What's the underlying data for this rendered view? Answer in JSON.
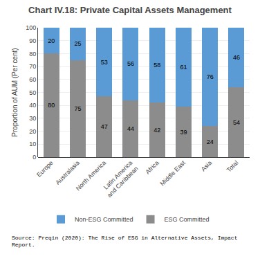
{
  "chart_data": {
    "type": "bar",
    "title": "Chart IV.18: Private Capital Assets Management",
    "categories": [
      "Europe",
      "Australasia",
      "North America",
      "Latin America\nand Caribbean",
      "Africa",
      "Middle East",
      "Asia",
      "Total"
    ],
    "series": [
      {
        "name": "ESG Committed",
        "color": "#8c8c8c",
        "values": [
          80,
          75,
          47,
          44,
          42,
          39,
          24,
          54
        ]
      },
      {
        "name": "Non-ESG Committed",
        "color": "#5b9bd5",
        "values": [
          20,
          25,
          53,
          56,
          58,
          61,
          76,
          46
        ]
      }
    ],
    "stacked": true,
    "data_labels": true,
    "ylabel": "Proportion of AUM (Per cent)",
    "ylim": [
      0,
      100
    ],
    "yticks": [
      0,
      10,
      20,
      30,
      40,
      50,
      60,
      70,
      80,
      90,
      100
    ],
    "grid": true,
    "legend": "bottom",
    "annotations": [
      "Source: Preqin (2020): The Rise of ESG in Alternative Assets, Impact\nReport."
    ]
  }
}
